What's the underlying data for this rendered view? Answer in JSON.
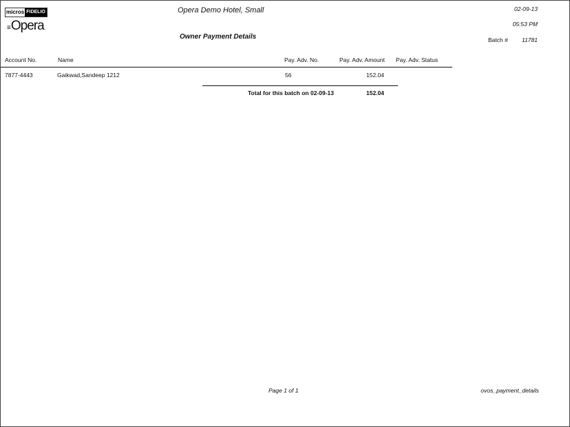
{
  "header": {
    "logo_micros": "micros",
    "logo_fidelio": "FIDELIO",
    "logo_opera": "Opera",
    "hotel_name": "Opera Demo Hotel, Small",
    "report_title": "Owner Payment Details",
    "date": "02-09-13",
    "time": "05:53 PM",
    "batch_label": "Batch #",
    "batch_number": "11781"
  },
  "table": {
    "columns": [
      "Account No.",
      "Name",
      "Pay. Adv. No.",
      "Pay. Adv. Amount",
      "Pay. Adv. Status"
    ],
    "rows": [
      {
        "account_no": "7877-4443",
        "name": "Gaikwad,Sandeep 1212",
        "pay_adv_no": "56",
        "amount": "152.04",
        "status": ""
      }
    ],
    "total_label": "Total for this batch on 02-09-13",
    "total_amount": "152.04"
  },
  "footer": {
    "page": "Page 1 of 1",
    "report_name": "ovos_payment_details"
  }
}
